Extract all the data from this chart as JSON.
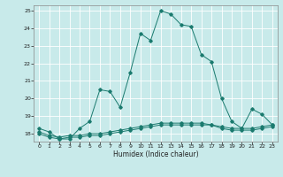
{
  "xlabel": "Humidex (Indice chaleur)",
  "background_color": "#c8eaea",
  "grid_color": "#ffffff",
  "line_color": "#1a7a6e",
  "xlim": [
    -0.5,
    23.5
  ],
  "ylim": [
    17.55,
    25.3
  ],
  "yticks": [
    18,
    19,
    20,
    21,
    22,
    23,
    24,
    25
  ],
  "xticks": [
    0,
    1,
    2,
    3,
    4,
    5,
    6,
    7,
    8,
    9,
    10,
    11,
    12,
    13,
    14,
    15,
    16,
    17,
    18,
    19,
    20,
    21,
    22,
    23
  ],
  "series1_x": [
    0,
    1,
    2,
    3,
    4,
    5,
    6,
    7,
    8,
    9,
    10,
    11,
    12,
    13,
    14,
    15,
    16,
    17,
    18,
    19,
    20,
    21,
    22,
    23
  ],
  "series1_y": [
    18.3,
    18.1,
    17.7,
    17.7,
    18.3,
    18.7,
    20.5,
    20.4,
    19.5,
    21.5,
    23.7,
    23.3,
    25.0,
    24.8,
    24.2,
    24.1,
    22.5,
    22.1,
    20.0,
    18.7,
    18.3,
    19.4,
    19.1,
    18.5
  ],
  "series2_x": [
    0,
    1,
    2,
    3,
    4,
    5,
    6,
    7,
    8,
    9,
    10,
    11,
    12,
    13,
    14,
    15,
    16,
    17,
    18,
    19,
    20,
    21,
    22,
    23
  ],
  "series2_y": [
    18.0,
    17.8,
    17.7,
    17.8,
    17.8,
    17.9,
    17.9,
    18.0,
    18.1,
    18.2,
    18.3,
    18.4,
    18.5,
    18.5,
    18.5,
    18.5,
    18.5,
    18.5,
    18.3,
    18.2,
    18.2,
    18.2,
    18.3,
    18.4
  ],
  "series3_x": [
    0,
    1,
    2,
    3,
    4,
    5,
    6,
    7,
    8,
    9,
    10,
    11,
    12,
    13,
    14,
    15,
    16,
    17,
    18,
    19,
    20,
    21,
    22,
    23
  ],
  "series3_y": [
    18.1,
    17.9,
    17.8,
    17.9,
    17.9,
    18.0,
    18.0,
    18.1,
    18.2,
    18.3,
    18.4,
    18.5,
    18.6,
    18.6,
    18.6,
    18.6,
    18.6,
    18.5,
    18.4,
    18.3,
    18.3,
    18.3,
    18.4,
    18.5
  ]
}
